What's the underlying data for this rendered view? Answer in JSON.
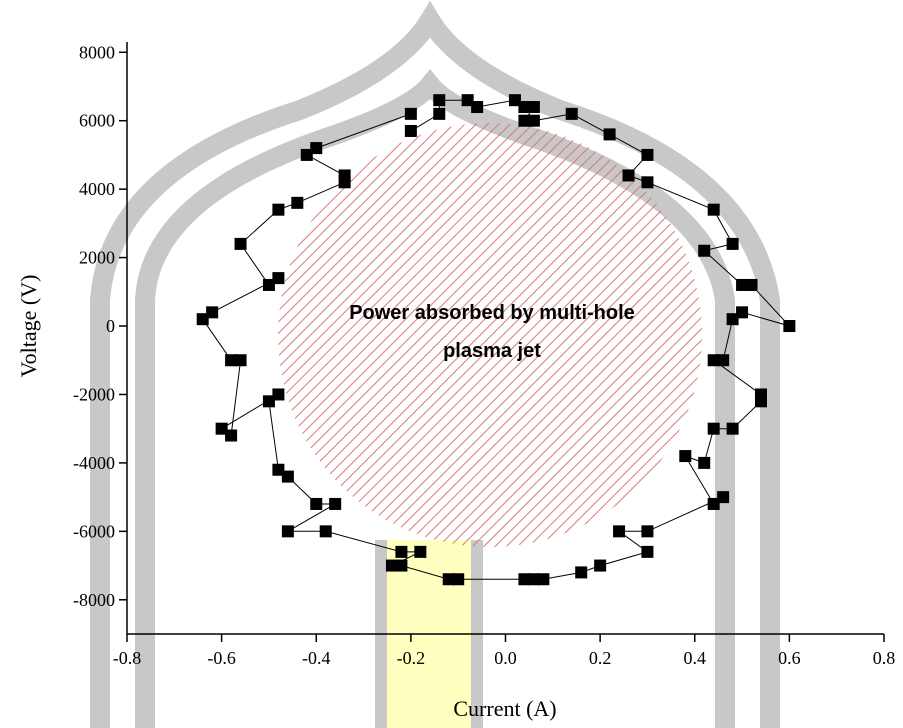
{
  "chart_data": {
    "type": "scatter",
    "x_label": "Current (A)",
    "y_label": "Voltage (V)",
    "annotation": [
      "Power absorbed by multi-hole",
      "plasma jet"
    ],
    "xlim": [
      -0.8,
      0.8
    ],
    "ylim": [
      -9000,
      8300
    ],
    "xticks": [
      -0.8,
      -0.6,
      -0.4,
      -0.2,
      {
        "value": 0,
        "label": "0.0"
      },
      0.2,
      0.4,
      0.6,
      0.8
    ],
    "yticks": [
      -8000,
      -6000,
      -4000,
      -2000,
      0,
      2000,
      4000,
      6000,
      8000
    ],
    "color": "#000000",
    "x": [
      -0.2,
      -0.14,
      -0.14,
      -0.08,
      -0.06,
      0.02,
      0.04,
      0.06,
      0.04,
      0.06,
      0.14,
      0.22,
      0.3,
      0.26,
      0.3,
      0.44,
      0.48,
      0.42,
      0.5,
      0.52,
      0.6,
      0.5,
      0.48,
      0.46,
      0.44,
      0.54,
      0.54,
      0.48,
      0.44,
      0.42,
      0.38,
      0.44,
      0.46,
      0.3,
      0.24,
      0.3,
      0.2,
      0.16,
      0.08,
      0.06,
      0.04,
      -0.1,
      -0.12,
      -0.22,
      -0.24,
      -0.18,
      -0.22,
      -0.38,
      -0.46,
      -0.36,
      -0.4,
      -0.46,
      -0.48,
      -0.5,
      -0.48,
      -0.6,
      -0.58,
      -0.56,
      -0.58,
      -0.64,
      -0.62,
      -0.48,
      -0.5,
      -0.56,
      -0.48,
      -0.44,
      -0.34,
      -0.34,
      -0.42,
      -0.4,
      -0.2
    ],
    "values": [
      5700,
      6200,
      6600,
      6600,
      6400,
      6600,
      6400,
      6400,
      6000,
      6000,
      6200,
      5600,
      5000,
      4400,
      4200,
      3400,
      2400,
      2200,
      1200,
      1200,
      0,
      400,
      200,
      -1000,
      -1000,
      -2000,
      -2200,
      -3000,
      -3000,
      -4000,
      -3800,
      -5200,
      -5000,
      -6000,
      -6000,
      -6600,
      -7000,
      -7200,
      -7400,
      -7400,
      -7400,
      -7400,
      -7400,
      -7000,
      -7000,
      -6600,
      -6600,
      -6000,
      -6000,
      -5200,
      -5200,
      -4400,
      -4200,
      -2200,
      -2000,
      -3000,
      -3200,
      -1000,
      -1000,
      200,
      400,
      1400,
      1200,
      2400,
      3400,
      3600,
      4200,
      4400,
      5000,
      5200,
      6200
    ]
  }
}
